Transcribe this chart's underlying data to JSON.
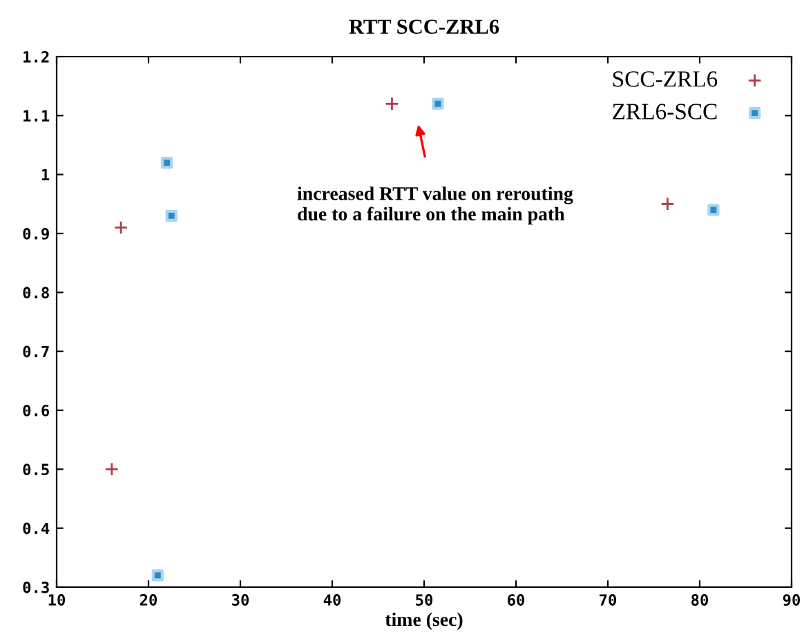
{
  "chart_data": {
    "type": "scatter",
    "title": "RTT SCC-ZRL6",
    "xlabel": "time (sec)",
    "series": [
      {
        "name": "SCC-ZRL6",
        "color": "#b03a4e",
        "marker": "cross",
        "x": [
          16,
          17,
          46.5,
          76.5
        ],
        "values": [
          0.5,
          0.91,
          1.12,
          0.95
        ]
      },
      {
        "name": "ZRL6-SCC",
        "color": "#2a8ac8",
        "marker": "square",
        "x": [
          21,
          22,
          22.5,
          51.5,
          81.5
        ],
        "values": [
          0.32,
          1.02,
          0.93,
          1.12,
          0.94
        ]
      }
    ],
    "annotations": [
      "increased RTT value on rerouting\ndue to a failure on the main path"
    ],
    "xlim": [
      10,
      90
    ],
    "xticks": [
      10,
      20,
      30,
      40,
      50,
      60,
      70,
      80,
      90
    ],
    "ylim": [
      0.3,
      1.2
    ],
    "yticks": [
      0.3,
      0.4,
      0.5,
      0.6,
      0.7,
      0.8,
      0.9,
      1,
      1.1,
      1.2
    ],
    "grid": false,
    "legend": "top right"
  }
}
